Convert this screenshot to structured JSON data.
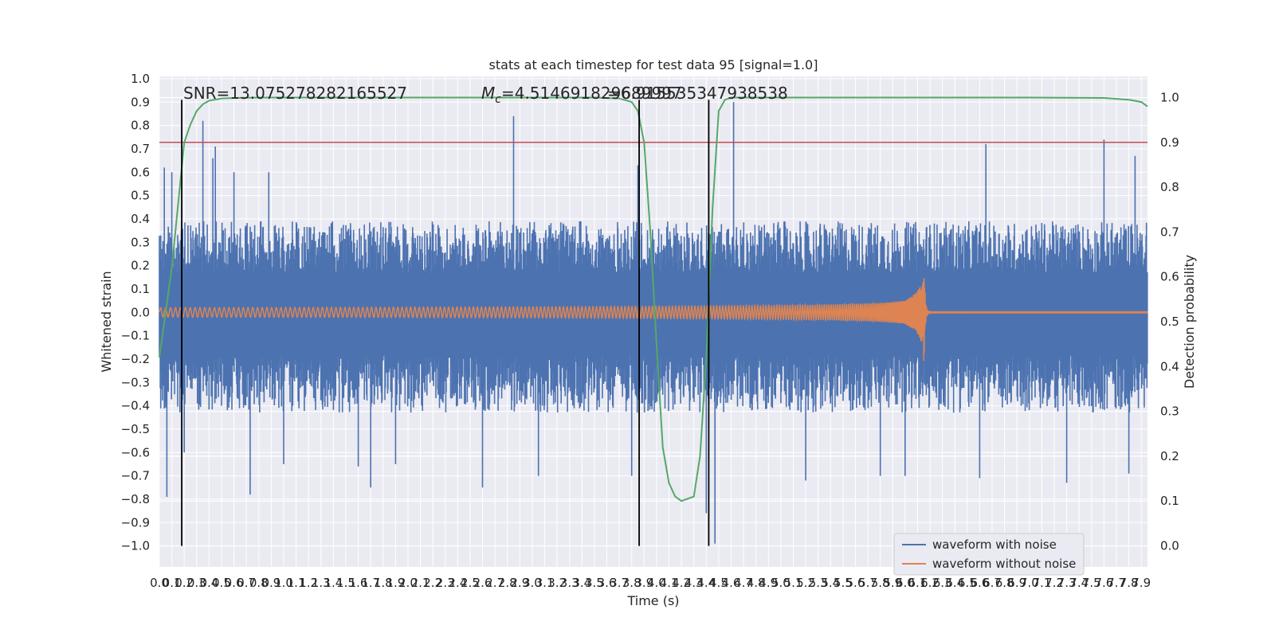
{
  "chart_data": {
    "type": "line",
    "title": "stats at each timestep for test data 95 [signal=1.0]",
    "xlabel": "Time (s)",
    "ylabel": "Whitened strain",
    "y2label": "Detection probability",
    "xlim": [
      0.0,
      7.95
    ],
    "ylim": [
      -1.09,
      1.01
    ],
    "y2lim": [
      -0.047,
      1.047
    ],
    "x_ticks": [
      "0.0",
      "0.1",
      "0.2",
      "0.3",
      "0.4",
      "0.5",
      "0.6",
      "0.7",
      "0.8",
      "0.9",
      "1.0",
      "1.1",
      "1.2",
      "1.3",
      "1.4",
      "1.5",
      "1.6",
      "1.7",
      "1.8",
      "1.9",
      "2.0",
      "2.1",
      "2.2",
      "2.3",
      "2.4",
      "2.5",
      "2.6",
      "2.7",
      "2.8",
      "2.9",
      "3.0",
      "3.1",
      "3.2",
      "3.3",
      "3.4",
      "3.5",
      "3.6",
      "3.7",
      "3.8",
      "3.9",
      "4.0",
      "4.1",
      "4.2",
      "4.3",
      "4.4",
      "4.5",
      "4.6",
      "4.7",
      "4.8",
      "4.9",
      "5.0",
      "5.1",
      "5.2",
      "5.3",
      "5.4",
      "5.5",
      "5.6",
      "5.7",
      "5.8",
      "5.9",
      "6.0",
      "6.1",
      "6.2",
      "6.3",
      "6.4",
      "6.5",
      "6.6",
      "6.7",
      "6.8",
      "6.9",
      "7.0",
      "7.1",
      "7.2",
      "7.3",
      "7.4",
      "7.5",
      "7.6",
      "7.7",
      "7.8",
      "7.9"
    ],
    "y_ticks": [
      "1.0",
      "0.9",
      "0.8",
      "0.7",
      "0.6",
      "0.5",
      "0.4",
      "0.3",
      "0.2",
      "0.1",
      "0.0",
      "−0.1",
      "−0.2",
      "−0.3",
      "−0.4",
      "−0.5",
      "−0.6",
      "−0.7",
      "−0.8",
      "−0.9",
      "−1.0"
    ],
    "y2_ticks": [
      "1.0",
      "0.9",
      "0.8",
      "0.7",
      "0.6",
      "0.5",
      "0.4",
      "0.3",
      "0.2",
      "0.1",
      "0.0"
    ],
    "annotations": {
      "snr": "SNR=13.075278282165527",
      "mc": "M",
      "mc_sub": "c",
      "mc_value": "=4.514691829689997",
      "tail": "=6.915535347938538"
    },
    "threshold_right": 0.9,
    "vertical_lines_x": [
      0.18,
      3.86,
      4.42
    ],
    "series": [
      {
        "name": "waveform with noise",
        "color": "#4c72b0",
        "description_envelope": {
          "typical_pos": 0.3,
          "typical_neg": -0.33,
          "spikes": [
            [
              0.04,
              0.62
            ],
            [
              0.06,
              -0.79
            ],
            [
              0.1,
              0.6
            ],
            [
              0.2,
              -0.6
            ],
            [
              0.35,
              0.82
            ],
            [
              0.43,
              0.66
            ],
            [
              0.45,
              0.71
            ],
            [
              0.6,
              0.6
            ],
            [
              0.73,
              -0.78
            ],
            [
              0.88,
              0.6
            ],
            [
              1.0,
              -0.65
            ],
            [
              1.6,
              -0.66
            ],
            [
              1.7,
              -0.75
            ],
            [
              1.9,
              -0.65
            ],
            [
              2.6,
              -0.75
            ],
            [
              2.85,
              0.84
            ],
            [
              3.05,
              -0.7
            ],
            [
              3.8,
              -0.7
            ],
            [
              3.85,
              0.63
            ],
            [
              4.4,
              -0.86
            ],
            [
              4.47,
              -0.99
            ],
            [
              4.62,
              0.9
            ],
            [
              5.2,
              -0.72
            ],
            [
              5.8,
              -0.7
            ],
            [
              6.0,
              -0.7
            ],
            [
              6.6,
              -0.71
            ],
            [
              6.65,
              0.72
            ],
            [
              7.3,
              -0.73
            ],
            [
              7.6,
              0.74
            ],
            [
              7.85,
              0.67
            ],
            [
              7.8,
              -0.69
            ]
          ]
        }
      },
      {
        "name": "waveform without noise",
        "color": "#dd8452",
        "chirp": {
          "start": 0.0,
          "merger_time": 6.15,
          "amp_start": 0.02,
          "amp_peak": 0.29,
          "cycles_start": 25,
          "ringdown_amp": 0.005
        }
      },
      {
        "name": "",
        "color": "#55a868",
        "axis": "right",
        "x": [
          0.0,
          0.1,
          0.2,
          0.25,
          0.3,
          0.35,
          0.4,
          0.5,
          0.6,
          0.8,
          1.0,
          2.0,
          3.0,
          3.5,
          3.7,
          3.8,
          3.85,
          3.9,
          3.95,
          4.0,
          4.05,
          4.1,
          4.15,
          4.2,
          4.3,
          4.35,
          4.4,
          4.45,
          4.5,
          4.55,
          4.6,
          5.0,
          6.0,
          7.0,
          7.6,
          7.8,
          7.9,
          7.95
        ],
        "y": [
          0.42,
          0.62,
          0.9,
          0.94,
          0.97,
          0.985,
          0.993,
          0.998,
          0.999,
          1.0,
          1.0,
          1.0,
          1.0,
          1.0,
          0.998,
          0.99,
          0.97,
          0.9,
          0.7,
          0.45,
          0.22,
          0.14,
          0.11,
          0.1,
          0.11,
          0.2,
          0.42,
          0.75,
          0.97,
          0.995,
          1.0,
          1.0,
          1.0,
          1.0,
          0.999,
          0.995,
          0.99,
          0.98
        ]
      }
    ],
    "legend": {
      "placement": "lower-right"
    }
  }
}
